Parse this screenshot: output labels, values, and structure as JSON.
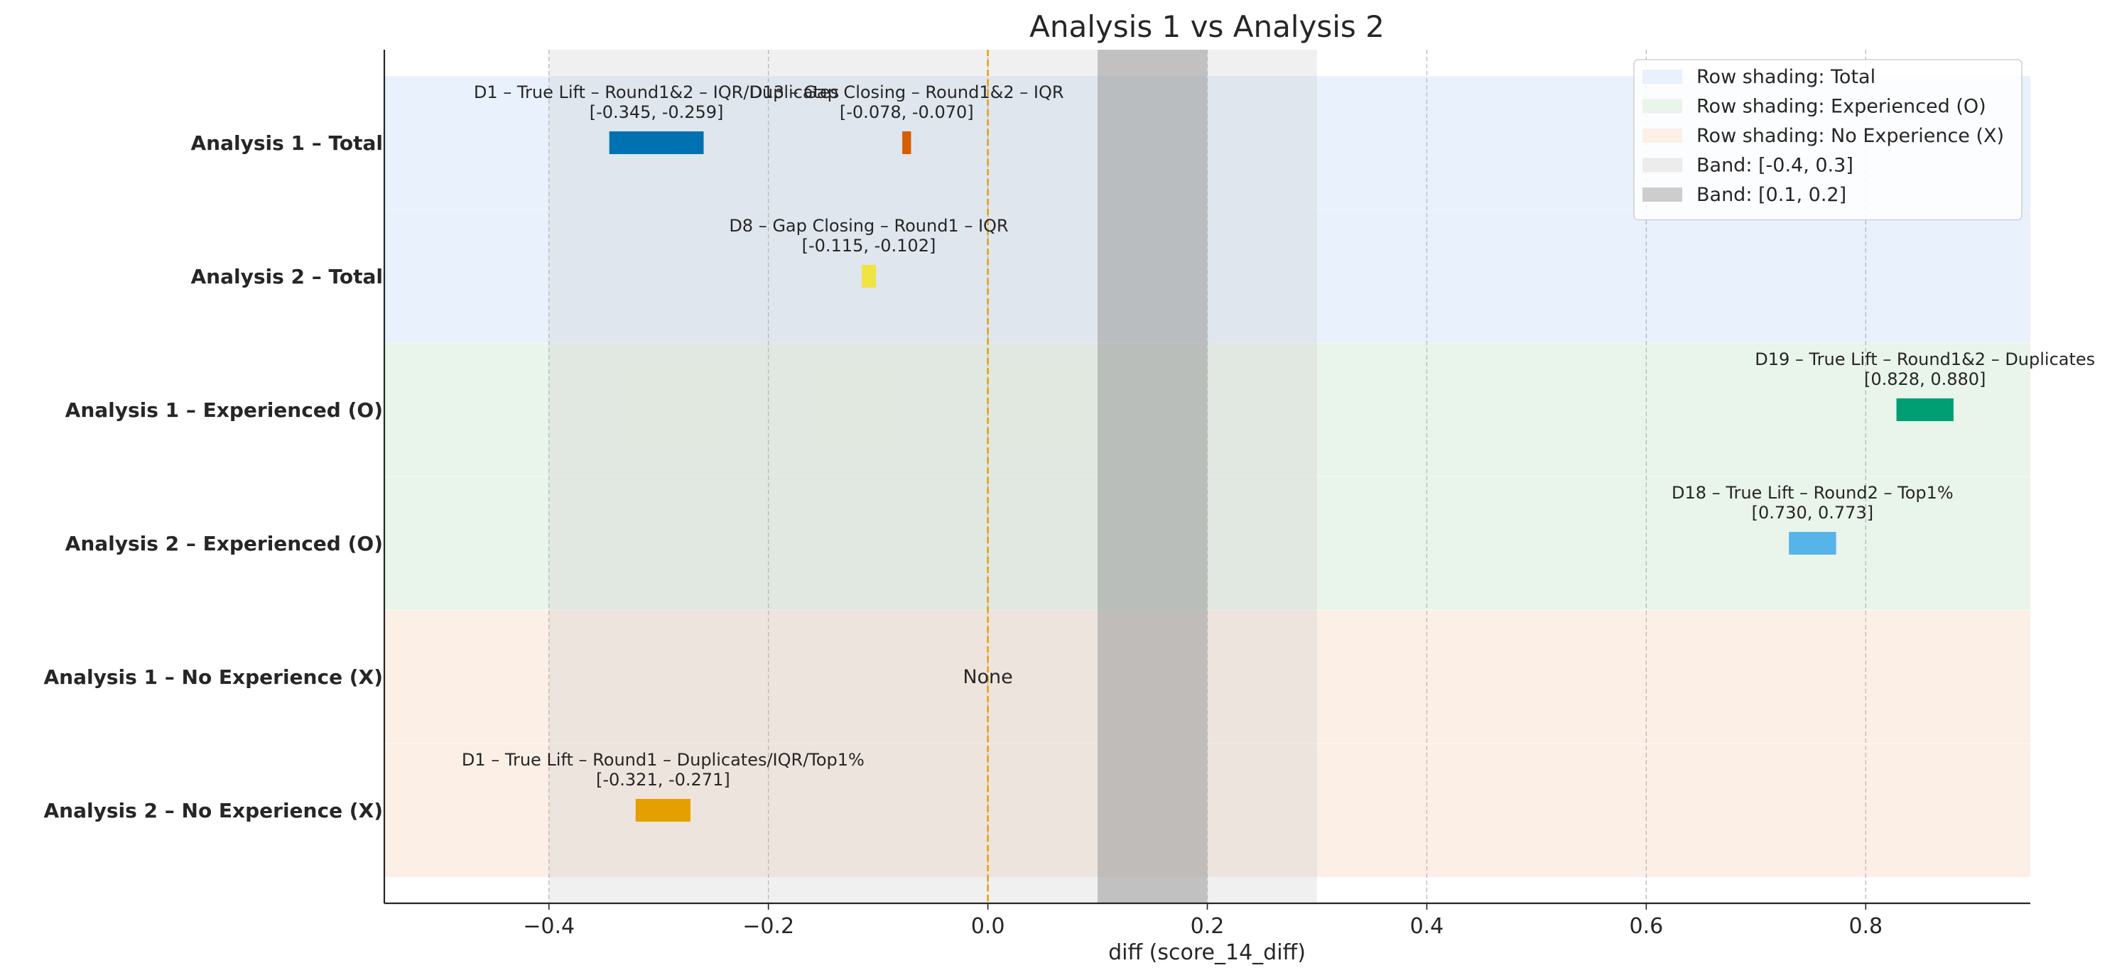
{
  "chart_data": {
    "type": "bar",
    "orientation": "horizontal-range",
    "title": "Analysis 1 vs Analysis 2",
    "xlabel": "diff (score_14_diff)",
    "ylabel": "",
    "xlim": [
      -0.55,
      0.95
    ],
    "xticks": [
      -0.4,
      -0.2,
      0.0,
      0.2,
      0.4,
      0.6,
      0.8
    ],
    "xtick_labels": [
      "−0.4",
      "−0.2",
      "0.0",
      "0.2",
      "0.4",
      "0.6",
      "0.8"
    ],
    "grid": "vertical dashed",
    "reference_line": {
      "x": 0.0,
      "color": "#e69f00",
      "style": "dashed"
    },
    "rows": [
      "Analysis 1 – Total",
      "Analysis 2 – Total",
      "Analysis 1 – Experienced (O)",
      "Analysis 2 – Experienced (O)",
      "Analysis 1 – No Experience (X)",
      "Analysis 2 – No Experience (X)"
    ],
    "row_groups": [
      {
        "name": "Total",
        "rows": [
          0,
          1
        ],
        "color": "#e8f1fc"
      },
      {
        "name": "Experienced (O)",
        "rows": [
          2,
          3
        ],
        "color": "#e9f4ea"
      },
      {
        "name": "No Experience (X)",
        "rows": [
          4,
          5
        ],
        "color": "#fcefe6"
      }
    ],
    "bands": [
      {
        "range": [
          -0.4,
          0.3
        ],
        "color": "#c8c8c8",
        "opacity": 0.28
      },
      {
        "range": [
          0.1,
          0.2
        ],
        "color": "#9a9a9a",
        "opacity": 0.55
      }
    ],
    "bars": [
      {
        "row": 0,
        "low": -0.345,
        "high": -0.259,
        "color": "#0072b2",
        "label": "D1 – True Lift – Round1&2 – IQR/Duplicates",
        "range_label": "[-0.345, -0.259]"
      },
      {
        "row": 0,
        "low": -0.078,
        "high": -0.07,
        "color": "#d55e00",
        "label": "D13 – Gap Closing – Round1&2 – IQR",
        "range_label": "[-0.078, -0.070]"
      },
      {
        "row": 1,
        "low": -0.115,
        "high": -0.102,
        "color": "#f0e442",
        "label": "D8 – Gap Closing – Round1 – IQR",
        "range_label": "[-0.115, -0.102]"
      },
      {
        "row": 2,
        "low": 0.828,
        "high": 0.88,
        "color": "#009e73",
        "label": "D19 – True Lift – Round1&2 – Duplicates",
        "range_label": "[0.828, 0.880]"
      },
      {
        "row": 3,
        "low": 0.73,
        "high": 0.773,
        "color": "#56b4e9",
        "label": "D18 – True Lift – Round2 – Top1%",
        "range_label": "[0.730, 0.773]"
      },
      {
        "row": 5,
        "low": -0.321,
        "high": -0.271,
        "color": "#e69f00",
        "label": "D1 – True Lift – Round1 – Duplicates/IQR/Top1%",
        "range_label": "[-0.321, -0.271]"
      }
    ],
    "empty_rows": [
      {
        "row": 4,
        "x": 0.0,
        "text": "None"
      }
    ],
    "legend": {
      "placement": "top-right",
      "entries": [
        {
          "label": "Row shading: Total",
          "color": "#e8f1fc"
        },
        {
          "label": "Row shading: Experienced (O)",
          "color": "#e9f4ea"
        },
        {
          "label": "Row shading: No Experience (X)",
          "color": "#fcefe6"
        },
        {
          "label": "Band: [-0.4, 0.3]",
          "color": "#ececec"
        },
        {
          "label": "Band: [0.1, 0.2]",
          "color": "#cdcdcd"
        }
      ]
    }
  }
}
